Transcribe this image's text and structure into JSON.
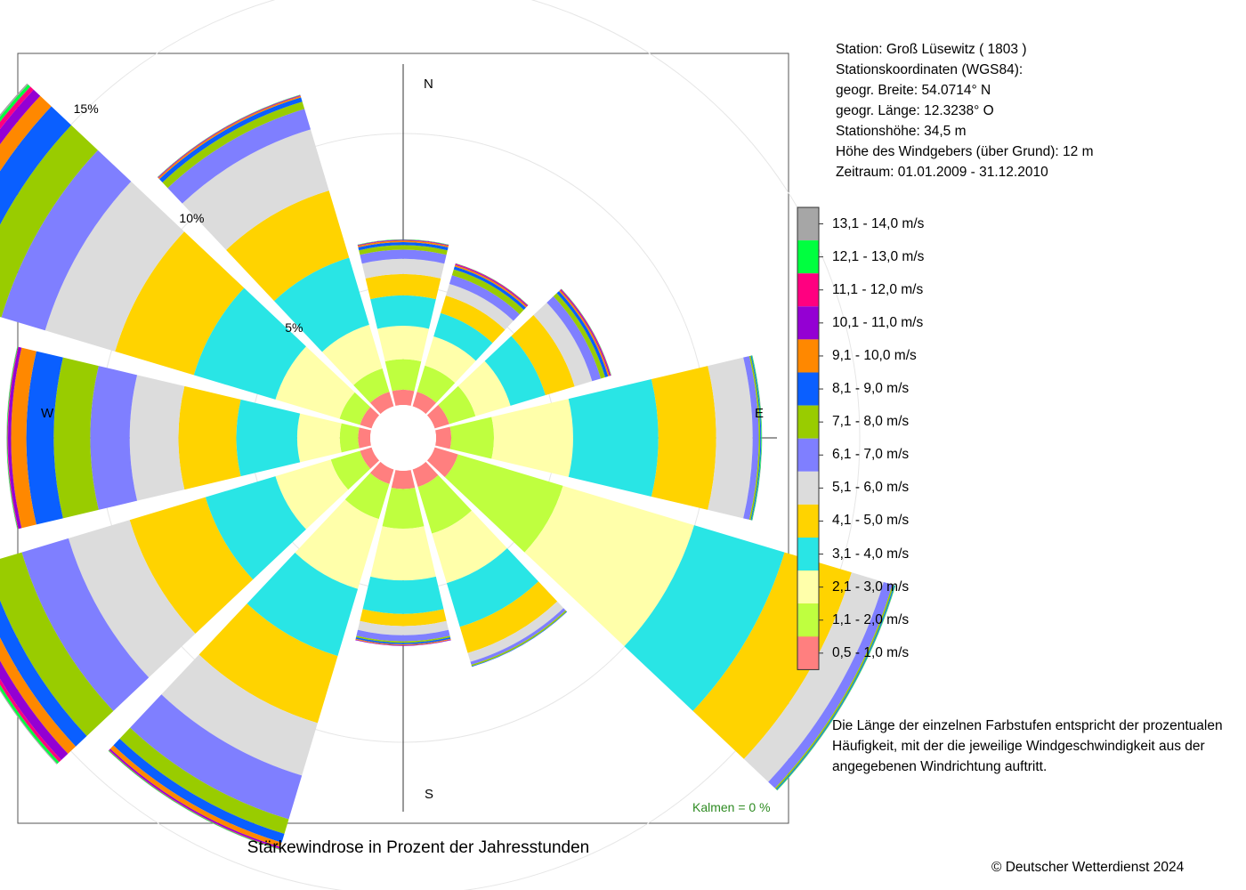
{
  "station": {
    "line1": "Station:  Groß Lüsewitz  ( 1803 )",
    "line2": "Stationskoordinaten (WGS84):",
    "line3": "geogr. Breite: 54.0714° N",
    "line4": "geogr. Länge: 12.3238° O",
    "line5": "Stationshöhe: 34,5 m",
    "line6": "Höhe des Windgebers (über Grund): 12 m",
    "line7": "Zeitraum: 01.01.2009 - 31.12.2010"
  },
  "note": "Die Länge der einzelnen Farbstufen entspricht der prozentualen Häufigkeit, mit der die jeweilige Windgeschwindigkeit aus der angegebenen Windrichtung auftritt.",
  "calm": "Kalmen  =  0 %",
  "copyright": "© Deutscher Wetterdienst  2024",
  "chart_data": {
    "type": "polar-stacked-bar",
    "title": "Stärkewindrose in Prozent der Jahresstunden",
    "directions": [
      "N",
      "E",
      "S",
      "W"
    ],
    "ring_labels": [
      "5%",
      "10%",
      "15%"
    ],
    "rings": [
      5,
      10,
      15
    ],
    "r_max": 18,
    "sectors_deg": [
      0,
      30,
      60,
      90,
      120,
      150,
      180,
      210,
      240,
      270,
      300,
      330
    ],
    "inner_radius_pct": 0.8,
    "series": [
      {
        "name": "0,5 - 1,0 m/s",
        "color": "#ff7f7f",
        "values": [
          0.5,
          0.5,
          0.5,
          0.5,
          0.8,
          0.6,
          0.6,
          0.5,
          0.4,
          0.4,
          0.4,
          0.5
        ]
      },
      {
        "name": "1,1 - 2,0 m/s",
        "color": "#bfff3f",
        "values": [
          1.0,
          0.9,
          0.9,
          1.4,
          3.6,
          1.6,
          1.3,
          1.2,
          1.0,
          0.6,
          0.7,
          0.8
        ]
      },
      {
        "name": "2,1 - 3,0 m/s",
        "color": "#ffffaa",
        "values": [
          1.1,
          1.0,
          1.2,
          2.6,
          4.5,
          1.7,
          1.7,
          2.4,
          1.9,
          1.4,
          2.2,
          1.5
        ]
      },
      {
        "name": "3,1 - 4,0 m/s",
        "color": "#29e5e5",
        "values": [
          1.0,
          0.8,
          1.2,
          2.8,
          3.1,
          1.5,
          1.1,
          2.3,
          2.4,
          2.0,
          2.8,
          2.3
        ]
      },
      {
        "name": "4,1 - 5,0 m/s",
        "color": "#ffd300",
        "values": [
          0.7,
          0.6,
          1.0,
          1.9,
          2.3,
          0.9,
          0.4,
          2.3,
          2.6,
          1.9,
          2.7,
          2.3
        ]
      },
      {
        "name": "5,1 - 6,0 m/s",
        "color": "#dcdcdc",
        "values": [
          0.5,
          0.4,
          0.6,
          1.2,
          1.1,
          0.3,
          0.3,
          1.8,
          2.1,
          1.6,
          2.4,
          2.1
        ]
      },
      {
        "name": "6,1 - 7,0 m/s",
        "color": "#7f7fff",
        "values": [
          0.3,
          0.3,
          0.3,
          0.2,
          0.3,
          0.1,
          0.2,
          1.5,
          1.6,
          1.3,
          1.5,
          0.7
        ]
      },
      {
        "name": "7,1 - 8,0 m/s",
        "color": "#99cc00",
        "values": [
          0.15,
          0.2,
          0.15,
          0.05,
          0.05,
          0.05,
          0.05,
          0.5,
          1.2,
          1.2,
          1.2,
          0.25
        ]
      },
      {
        "name": "8,1 - 9,0 m/s",
        "color": "#0a5fff",
        "values": [
          0.1,
          0.1,
          0.1,
          0.03,
          0.03,
          0.02,
          0.05,
          0.3,
          0.5,
          0.9,
          0.9,
          0.15
        ]
      },
      {
        "name": "9,1 - 10,0 m/s",
        "color": "#ff8800",
        "values": [
          0.05,
          0.05,
          0.05,
          0.0,
          0.0,
          0.0,
          0.03,
          0.15,
          0.35,
          0.5,
          0.5,
          0.05
        ]
      },
      {
        "name": "10,1 - 11,0 m/s",
        "color": "#9400d3",
        "values": [
          0.02,
          0.03,
          0.03,
          0.0,
          0.0,
          0.0,
          0.02,
          0.05,
          0.3,
          0.1,
          0.3,
          0.02
        ]
      },
      {
        "name": "11,1 - 12,0 m/s",
        "color": "#ff0080",
        "values": [
          0.01,
          0.02,
          0.02,
          0.0,
          0.0,
          0.0,
          0.0,
          0.02,
          0.1,
          0.02,
          0.15,
          0.01
        ]
      },
      {
        "name": "12,1 - 13,0 m/s",
        "color": "#00ff3f",
        "values": [
          0.01,
          0.01,
          0.01,
          0.02,
          0.02,
          0.0,
          0.0,
          0.02,
          0.08,
          0.02,
          0.1,
          0.01
        ]
      },
      {
        "name": "13,1 - 14,0 m/s",
        "color": "#a6a6a6",
        "values": [
          0.0,
          0.0,
          0.0,
          0.01,
          0.01,
          0.0,
          0.0,
          0.01,
          0.03,
          0.01,
          0.05,
          0.0
        ]
      }
    ]
  }
}
